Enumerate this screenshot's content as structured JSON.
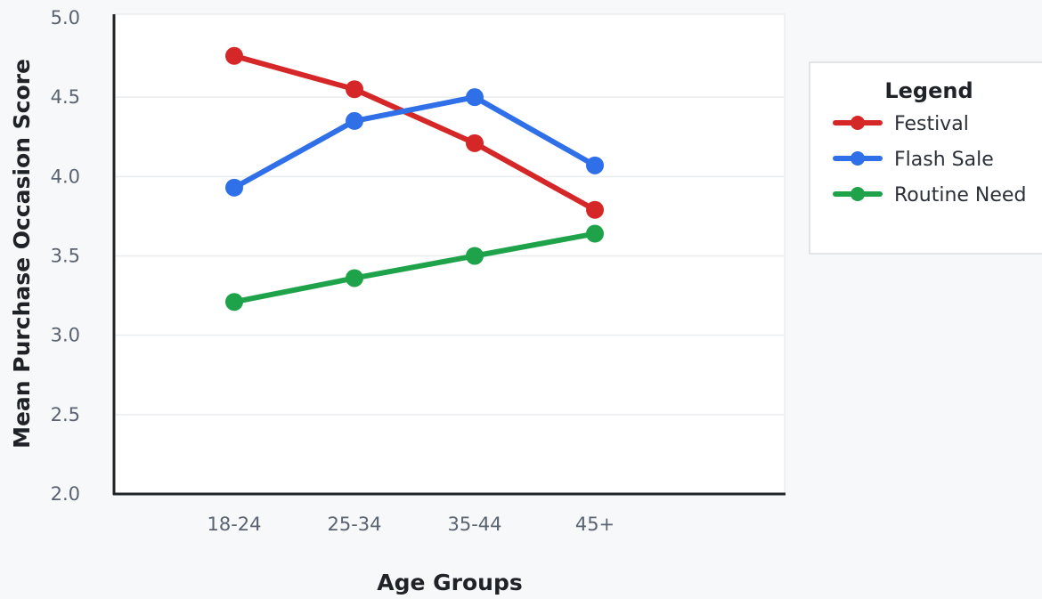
{
  "chart_data": {
    "type": "line",
    "title": "",
    "xlabel": "Age Groups",
    "ylabel": "Mean Purchase Occasion Score",
    "categories": [
      "18-24",
      "25-34",
      "35-44",
      "45+"
    ],
    "ylim": [
      2.0,
      5.0
    ],
    "yticks": [
      "2.0",
      "2.5",
      "3.0",
      "3.5",
      "4.0",
      "4.5",
      "5.0"
    ],
    "grid": true,
    "legend": {
      "title": "Legend",
      "position": "right"
    },
    "series": [
      {
        "name": "Festival",
        "color": "#d62728",
        "values": [
          4.76,
          4.55,
          4.21,
          3.79
        ]
      },
      {
        "name": "Flash Sale",
        "color": "#2f6fe8",
        "values": [
          3.93,
          4.35,
          4.5,
          4.07
        ]
      },
      {
        "name": "Routine Need",
        "color": "#1fa34a",
        "values": [
          3.21,
          3.36,
          3.5,
          3.64
        ]
      }
    ]
  }
}
